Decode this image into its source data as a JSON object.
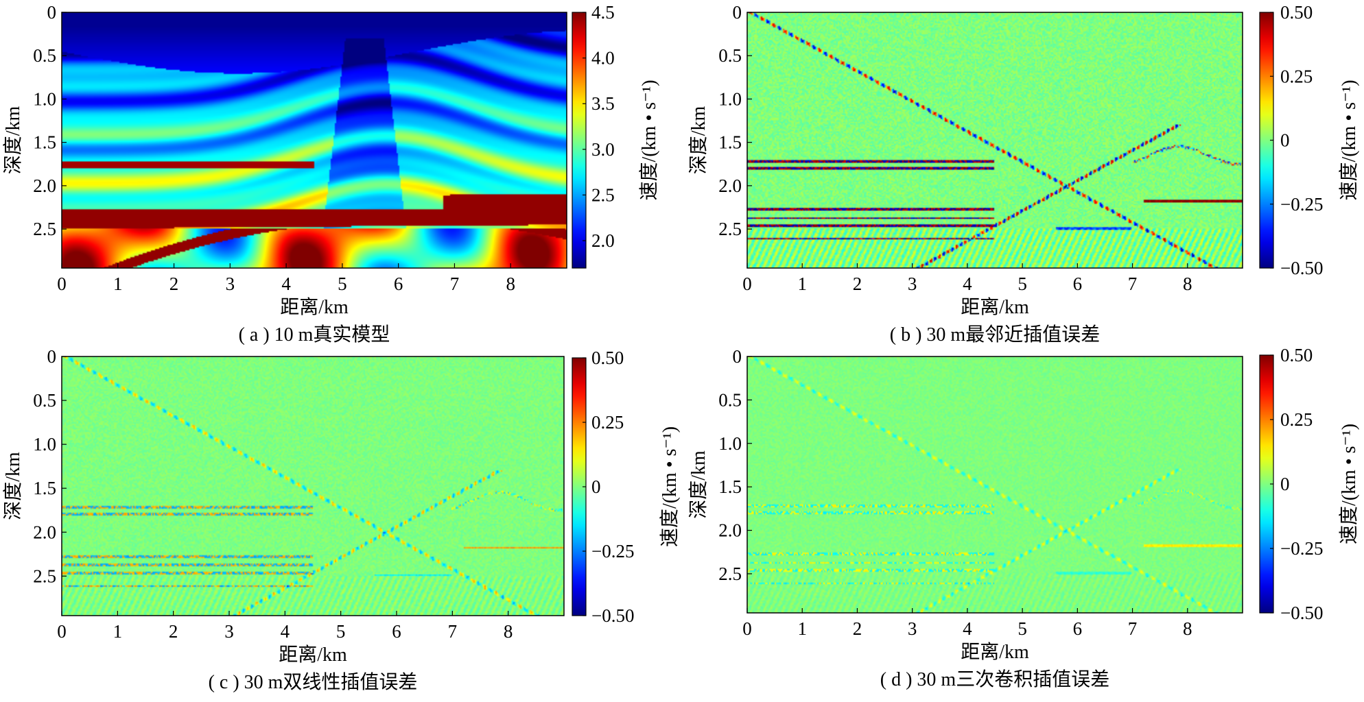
{
  "chart_data": [
    {
      "type": "heatmap",
      "caption": "( a ) 10 m真实模型",
      "xlabel": "距离/km",
      "ylabel": "深度/km",
      "colorbar_label": "速度/(km • s⁻¹)",
      "xlim": [
        0,
        9.0
      ],
      "ylim": [
        2.95,
        0
      ],
      "x_ticks": [
        "0",
        "1",
        "2",
        "3",
        "4",
        "5",
        "6",
        "7",
        "8"
      ],
      "y_ticks": [
        "0",
        "0.5",
        "1.0",
        "1.5",
        "2.0",
        "2.5"
      ],
      "colorbar_range": [
        1.7,
        4.5
      ],
      "colorbar_ticks": [
        "4.5",
        "4.0",
        "3.5",
        "3.0",
        "2.5",
        "2.0"
      ],
      "colormap": "jet",
      "field": "velocity"
    },
    {
      "type": "heatmap",
      "caption": "( b ) 30 m最邻近插值误差",
      "xlabel": "距离/km",
      "ylabel": "深度/km",
      "colorbar_label": "速度/(km • s⁻¹)",
      "xlim": [
        0,
        9.0
      ],
      "ylim": [
        2.95,
        0
      ],
      "x_ticks": [
        "0",
        "1",
        "2",
        "3",
        "4",
        "5",
        "6",
        "7",
        "8"
      ],
      "y_ticks": [
        "0",
        "0.5",
        "1.0",
        "1.5",
        "2.0",
        "2.5"
      ],
      "colorbar_range": [
        -0.5,
        0.5
      ],
      "colorbar_ticks": [
        "0.50",
        "0.25",
        "0",
        "−0.25",
        "−0.50"
      ],
      "colormap": "jet",
      "field": "error",
      "error_strength": 1.0
    },
    {
      "type": "heatmap",
      "caption": "( c ) 30 m双线性插值误差",
      "xlabel": "距离/km",
      "ylabel": "深度/km",
      "colorbar_label": "速度/(km • s⁻¹)",
      "xlim": [
        0,
        9.0
      ],
      "ylim": [
        2.95,
        0
      ],
      "x_ticks": [
        "0",
        "1",
        "2",
        "3",
        "4",
        "5",
        "6",
        "7",
        "8"
      ],
      "y_ticks": [
        "0",
        "0.5",
        "1.0",
        "1.5",
        "2.0",
        "2.5"
      ],
      "colorbar_range": [
        -0.5,
        0.5
      ],
      "colorbar_ticks": [
        "0.50",
        "0.25",
        "0",
        "−0.25",
        "−0.50"
      ],
      "colormap": "jet",
      "field": "error",
      "error_strength": 0.45
    },
    {
      "type": "heatmap",
      "caption": "( d ) 30 m三次卷积插值误差",
      "xlabel": "距离/km",
      "ylabel": "深度/km",
      "colorbar_label": "速度/(km • s⁻¹)",
      "xlim": [
        0,
        9.0
      ],
      "ylim": [
        2.95,
        0
      ],
      "x_ticks": [
        "0",
        "1",
        "2",
        "3",
        "4",
        "5",
        "6",
        "7",
        "8"
      ],
      "y_ticks": [
        "0",
        "0.5",
        "1.0",
        "1.5",
        "2.0",
        "2.5"
      ],
      "colorbar_range": [
        -0.5,
        0.5
      ],
      "colorbar_ticks": [
        "0.50",
        "0.25",
        "0",
        "−0.25",
        "−0.50"
      ],
      "colormap": "jet",
      "field": "error",
      "error_strength": 0.28
    }
  ]
}
